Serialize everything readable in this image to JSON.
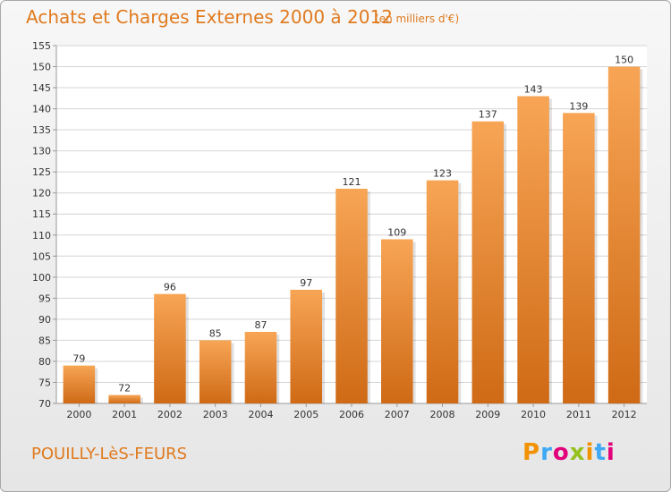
{
  "header": {
    "title": "Achats et Charges Externes 2000 à 2012",
    "unit": "(en milliers d'€)"
  },
  "footer": {
    "town": "POUILLY-LèS-FEURS",
    "logo_text": "Proxiti",
    "logo_letter_colors": [
      "#f39200",
      "#3fa9f5",
      "#e2007a",
      "#95c11f",
      "#f39200",
      "#3fa9f5",
      "#e2007a"
    ]
  },
  "colors": {
    "bar_top": "#f7a555",
    "bar_bottom": "#cf6a16",
    "grid": "#d4d4d4",
    "text_accent": "#e07a1e"
  },
  "chart_data": {
    "type": "bar",
    "categories": [
      "2000",
      "2001",
      "2002",
      "2003",
      "2004",
      "2005",
      "2006",
      "2007",
      "2008",
      "2009",
      "2010",
      "2011",
      "2012"
    ],
    "values": [
      79,
      72,
      96,
      85,
      87,
      97,
      121,
      109,
      123,
      137,
      143,
      139,
      150
    ],
    "ylim": [
      70,
      155
    ],
    "yticks": [
      70,
      75,
      80,
      85,
      90,
      95,
      100,
      105,
      110,
      115,
      120,
      125,
      130,
      135,
      140,
      145,
      150,
      155
    ],
    "grid": true,
    "show_value_labels": true
  }
}
